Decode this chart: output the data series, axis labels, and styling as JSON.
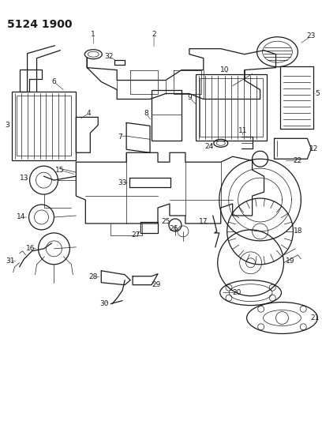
{
  "title": "5124 1900",
  "bg_color": "#ffffff",
  "line_color": "#1a1a1a",
  "fig_width": 4.08,
  "fig_height": 5.33,
  "dpi": 100
}
